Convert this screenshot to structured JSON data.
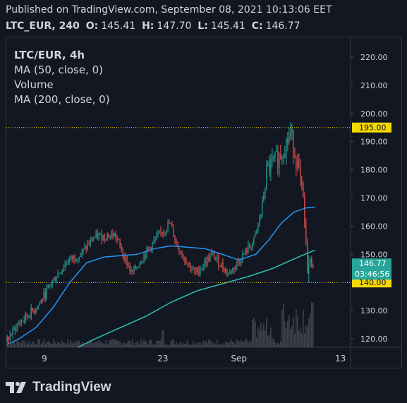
{
  "header": {
    "published": "Published on TradingView.com, September 08, 2021 10:13:06 EET",
    "symbol": "LTC_EUR, 240",
    "open_label": "O:",
    "open_value": "145.41",
    "high_label": "H:",
    "high_value": "147.70",
    "low_label": "L:",
    "low_value": "145.41",
    "close_label": "C:",
    "close_value": "146.77"
  },
  "legend": {
    "title": "LTC/EUR, 4h",
    "ma50": "MA (50, close, 0)",
    "volume": "Volume",
    "ma200": "MA (200, close, 0)"
  },
  "brand": {
    "name": "TradingView"
  },
  "colors": {
    "background": "#131722",
    "up": "#26a69a",
    "down": "#ef5350",
    "ma50": "#2196f3",
    "ma200": "#2ec4b6",
    "level": "#f5d800",
    "volume": "#5d606b",
    "axis_text": "#d1d4dc",
    "price_badge": "#26a69a"
  },
  "chart_data": {
    "type": "candlestick",
    "title": "LTC/EUR, 4h",
    "ylim": [
      117,
      227
    ],
    "y_ticks": [
      "120.00",
      "130.00",
      "140.00",
      "150.00",
      "160.00",
      "170.00",
      "180.00",
      "190.00",
      "200.00",
      "210.00",
      "220.00"
    ],
    "x_ticks": [
      {
        "label": "9",
        "day": 9
      },
      {
        "label": "23",
        "day": 23
      },
      {
        "label": "Sep",
        "day": 32
      },
      {
        "label": "13",
        "day": 44
      }
    ],
    "x_range_days": [
      4.5,
      45.2
    ],
    "horizontal_levels": [
      {
        "label": "195.00",
        "value": 195
      },
      {
        "label": "140.00",
        "value": 140
      }
    ],
    "last_price": {
      "label": "146.77",
      "value": 146.77,
      "countdown": "03:46:56"
    },
    "price_path_anchors": [
      {
        "day": 4.6,
        "price": 119
      },
      {
        "day": 6,
        "price": 125
      },
      {
        "day": 8.5,
        "price": 132
      },
      {
        "day": 10,
        "price": 140
      },
      {
        "day": 12,
        "price": 148
      },
      {
        "day": 13.5,
        "price": 150
      },
      {
        "day": 15,
        "price": 156
      },
      {
        "day": 17.5,
        "price": 157
      },
      {
        "day": 19.5,
        "price": 143
      },
      {
        "day": 21,
        "price": 150
      },
      {
        "day": 22.5,
        "price": 156
      },
      {
        "day": 24,
        "price": 161
      },
      {
        "day": 25,
        "price": 152
      },
      {
        "day": 27,
        "price": 143
      },
      {
        "day": 29,
        "price": 150
      },
      {
        "day": 31,
        "price": 143
      },
      {
        "day": 33,
        "price": 151
      },
      {
        "day": 34,
        "price": 155
      },
      {
        "day": 34.8,
        "price": 165
      },
      {
        "day": 35.5,
        "price": 180
      },
      {
        "day": 37,
        "price": 185
      },
      {
        "day": 38.3,
        "price": 193
      },
      {
        "day": 39.2,
        "price": 180
      },
      {
        "day": 39.8,
        "price": 168
      },
      {
        "day": 40.2,
        "price": 146
      },
      {
        "day": 41,
        "price": 146.77
      }
    ],
    "ma50_points": [
      {
        "day": 4.6,
        "price": 118
      },
      {
        "day": 6,
        "price": 120
      },
      {
        "day": 8,
        "price": 124
      },
      {
        "day": 10,
        "price": 131
      },
      {
        "day": 12,
        "price": 140
      },
      {
        "day": 14,
        "price": 147
      },
      {
        "day": 16,
        "price": 149
      },
      {
        "day": 18,
        "price": 149.5
      },
      {
        "day": 20,
        "price": 150
      },
      {
        "day": 22,
        "price": 152
      },
      {
        "day": 24,
        "price": 153
      },
      {
        "day": 26,
        "price": 152.5
      },
      {
        "day": 28,
        "price": 152
      },
      {
        "day": 30,
        "price": 150
      },
      {
        "day": 32,
        "price": 148
      },
      {
        "day": 34,
        "price": 150
      },
      {
        "day": 35.5,
        "price": 155
      },
      {
        "day": 37,
        "price": 161
      },
      {
        "day": 38.5,
        "price": 165
      },
      {
        "day": 40,
        "price": 166.5
      },
      {
        "day": 41,
        "price": 166.8
      }
    ],
    "ma200_points": [
      {
        "day": 13,
        "price": 117
      },
      {
        "day": 15,
        "price": 120
      },
      {
        "day": 18,
        "price": 124
      },
      {
        "day": 21,
        "price": 128
      },
      {
        "day": 24,
        "price": 133
      },
      {
        "day": 27,
        "price": 137
      },
      {
        "day": 30,
        "price": 139.5
      },
      {
        "day": 33,
        "price": 142
      },
      {
        "day": 36,
        "price": 145
      },
      {
        "day": 39,
        "price": 149
      },
      {
        "day": 41,
        "price": 151.5
      }
    ]
  }
}
